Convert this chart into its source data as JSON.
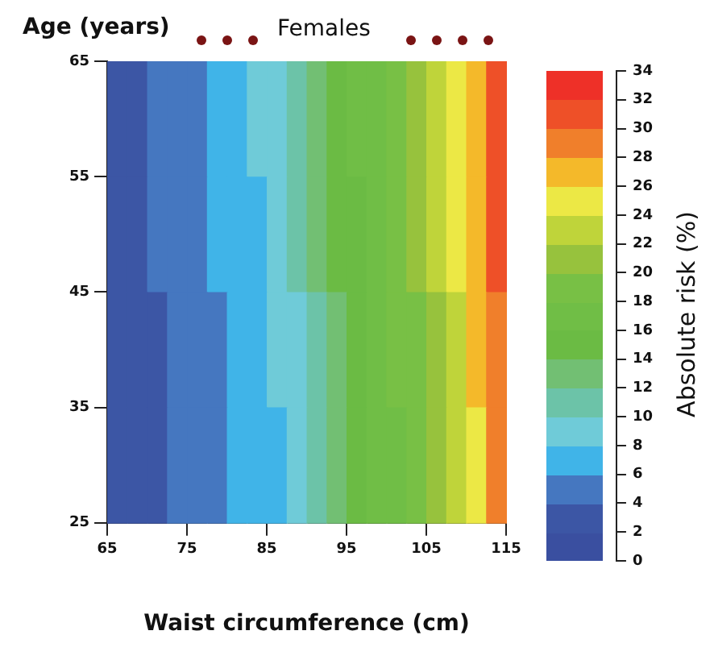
{
  "chart_data": {
    "type": "heatmap",
    "title": "Females",
    "xlabel": "Waist circumference (cm)",
    "ylabel": "Age (years)",
    "clabel": "Absolute risk (%)",
    "x": [
      66.25,
      68.75,
      71.25,
      73.75,
      76.25,
      78.75,
      81.25,
      83.75,
      86.25,
      88.75,
      91.25,
      93.75,
      96.25,
      98.75,
      101.25,
      103.75,
      106.25,
      108.75,
      111.25,
      113.75
    ],
    "y": [
      60,
      50,
      40,
      30
    ],
    "cells": [
      [
        3,
        3,
        5,
        5,
        5,
        7,
        7,
        9,
        9,
        11,
        13,
        15,
        17,
        17,
        19,
        21,
        23,
        25,
        27,
        31
      ],
      [
        3,
        3,
        5,
        5,
        5,
        7,
        7,
        7,
        9,
        11,
        13,
        15,
        15,
        17,
        19,
        21,
        23,
        25,
        27,
        31
      ],
      [
        3,
        3,
        3,
        5,
        5,
        5,
        7,
        7,
        9,
        9,
        11,
        13,
        15,
        17,
        19,
        19,
        21,
        23,
        27,
        29
      ],
      [
        3,
        3,
        3,
        5,
        5,
        5,
        7,
        7,
        7,
        9,
        11,
        13,
        15,
        17,
        17,
        19,
        21,
        23,
        25,
        29
      ]
    ],
    "xlim": [
      65,
      115
    ],
    "xticks": [
      65,
      75,
      85,
      95,
      105,
      115
    ],
    "ylim": [
      25,
      65
    ],
    "yticks": [
      25,
      35,
      45,
      55,
      65
    ],
    "clim": [
      0,
      34
    ],
    "cticks": [
      0,
      2,
      4,
      6,
      8,
      10,
      12,
      14,
      16,
      18,
      20,
      22,
      24,
      26,
      28,
      30,
      32,
      34
    ],
    "colors": [
      "#3a4fa0",
      "#3c56a5",
      "#4577c0",
      "#40b4e8",
      "#6fcbd8",
      "#6cc3a8",
      "#72bf73",
      "#6bbb44",
      "#70be46",
      "#78c045",
      "#97c23d",
      "#bfd43a",
      "#ece845",
      "#f4b92a",
      "#f07f2b",
      "#ee5028",
      "#ee3028"
    ],
    "grid": false
  }
}
